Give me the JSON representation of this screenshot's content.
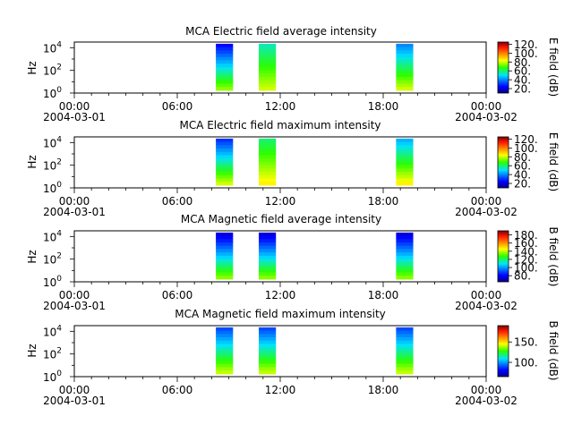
{
  "chart_data": [
    {
      "type": "heatmap",
      "title": "MCA  Electric field average intensity",
      "ylabel": "Hz",
      "colorbar_label": "E field (dB)",
      "colorbar_range": [
        10,
        125
      ],
      "colorbar_ticks": [
        20,
        40,
        60,
        80,
        100,
        120
      ],
      "colorbar_tick_labels": [
        "20.",
        "40.",
        "60.",
        "80.",
        "100.",
        "120."
      ],
      "ylim_log10": [
        0,
        4.5
      ],
      "y_ticks_log10": [
        0,
        2,
        4
      ],
      "y_tick_labels": [
        "10^0",
        "10^2",
        "10^4"
      ],
      "xlim_hours": [
        0,
        24
      ],
      "x_tick_labels": [
        "00:00",
        "06:00",
        "12:00",
        "18:00",
        "00:00"
      ],
      "x_date_labels": [
        "2004-03-01",
        "",
        "",
        "",
        "2004-03-02"
      ],
      "blocks": [
        {
          "start": "08:15",
          "end": "09:15",
          "low_value": 75,
          "high_value": 25
        },
        {
          "start": "10:45",
          "end": "11:45",
          "low_value": 80,
          "high_value": 55
        },
        {
          "start": "18:45",
          "end": "19:45",
          "low_value": 80,
          "high_value": 40
        }
      ]
    },
    {
      "type": "heatmap",
      "title": "MCA  Electric field maximum intensity",
      "ylabel": "Hz",
      "colorbar_label": "E field (dB)",
      "colorbar_range": [
        10,
        125
      ],
      "colorbar_ticks": [
        20,
        40,
        60,
        80,
        100,
        120
      ],
      "colorbar_tick_labels": [
        "20.",
        "40.",
        "60.",
        "80.",
        "100.",
        "120."
      ],
      "ylim_log10": [
        0,
        4.5
      ],
      "y_ticks_log10": [
        0,
        2,
        4
      ],
      "y_tick_labels": [
        "10^0",
        "10^2",
        "10^4"
      ],
      "xlim_hours": [
        0,
        24
      ],
      "x_tick_labels": [
        "00:00",
        "06:00",
        "12:00",
        "18:00",
        "00:00"
      ],
      "x_date_labels": [
        "2004-03-01",
        "",
        "",
        "",
        "2004-03-02"
      ],
      "blocks": [
        {
          "start": "08:15",
          "end": "09:15",
          "low_value": 80,
          "high_value": 30
        },
        {
          "start": "10:45",
          "end": "11:45",
          "low_value": 85,
          "high_value": 60
        },
        {
          "start": "18:45",
          "end": "19:45",
          "low_value": 85,
          "high_value": 45
        }
      ]
    },
    {
      "type": "heatmap",
      "title": "MCA  Magnetic field average intensity",
      "ylabel": "Hz",
      "colorbar_label": "B field (dB)",
      "colorbar_range": [
        65,
        190
      ],
      "colorbar_ticks": [
        80,
        100,
        120,
        140,
        160,
        180
      ],
      "colorbar_tick_labels": [
        "80.",
        "100.",
        "120.",
        "140.",
        "160.",
        "180."
      ],
      "ylim_log10": [
        0,
        4.5
      ],
      "y_ticks_log10": [
        0,
        2,
        4
      ],
      "y_tick_labels": [
        "10^0",
        "10^2",
        "10^4"
      ],
      "xlim_hours": [
        0,
        24
      ],
      "x_tick_labels": [
        "00:00",
        "06:00",
        "12:00",
        "18:00",
        "00:00"
      ],
      "x_date_labels": [
        "2004-03-01",
        "",
        "",
        "",
        "2004-03-02"
      ],
      "blocks": [
        {
          "start": "08:15",
          "end": "09:15",
          "low_value": 135,
          "high_value": 75
        },
        {
          "start": "10:45",
          "end": "11:45",
          "low_value": 135,
          "high_value": 75
        },
        {
          "start": "18:45",
          "end": "19:45",
          "low_value": 135,
          "high_value": 75
        }
      ]
    },
    {
      "type": "heatmap",
      "title": "MCA  Magnetic field maximum intensity",
      "ylabel": "Hz",
      "colorbar_label": "B field (dB)",
      "colorbar_range": [
        65,
        190
      ],
      "colorbar_ticks": [
        100,
        150
      ],
      "colorbar_tick_labels": [
        "100.",
        "150."
      ],
      "ylim_log10": [
        0,
        4.5
      ],
      "y_ticks_log10": [
        0,
        2,
        4
      ],
      "y_tick_labels": [
        "10^0",
        "10^2",
        "10^4"
      ],
      "xlim_hours": [
        0,
        24
      ],
      "x_tick_labels": [
        "00:00",
        "06:00",
        "12:00",
        "18:00",
        "00:00"
      ],
      "x_date_labels": [
        "2004-03-01",
        "",
        "",
        "",
        "2004-03-02"
      ],
      "blocks": [
        {
          "start": "08:15",
          "end": "09:15",
          "low_value": 140,
          "high_value": 90
        },
        {
          "start": "10:45",
          "end": "11:45",
          "low_value": 140,
          "high_value": 90
        },
        {
          "start": "18:45",
          "end": "19:45",
          "low_value": 140,
          "high_value": 90
        }
      ]
    }
  ]
}
